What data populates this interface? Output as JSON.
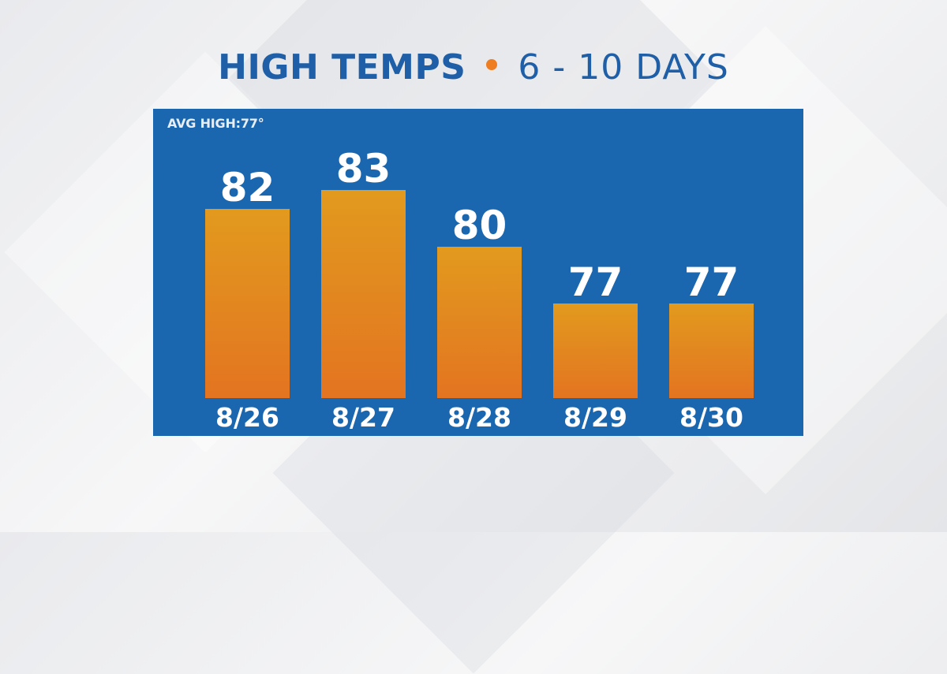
{
  "header": {
    "title_main": "HIGH TEMPS",
    "title_sub": "6 - 10 DAYS"
  },
  "colors": {
    "title": "#1e5fa8",
    "accent_dot": "#ef7d22",
    "panel": "#1a67b0",
    "bar_top": "#e29a1e",
    "bar_bottom": "#e37421",
    "label": "#ffffff"
  },
  "chart_data": {
    "type": "bar",
    "title": "HIGH TEMPS • 6 - 10 DAYS",
    "annotation": "AVG HIGH:77°",
    "categories": [
      "8/26",
      "8/27",
      "8/28",
      "8/29",
      "8/30"
    ],
    "values": [
      82,
      83,
      80,
      77,
      77
    ],
    "ylim": [
      72,
      83
    ],
    "grid": false,
    "legend": "none",
    "data_labels": true
  }
}
